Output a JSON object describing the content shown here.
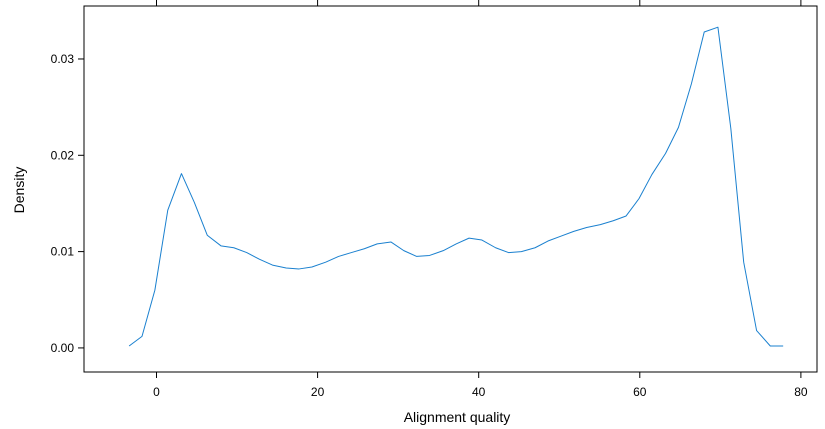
{
  "chart_data": {
    "type": "line",
    "title": "",
    "xlabel": "Alignment quality",
    "ylabel": "Density",
    "xlim": [
      -9,
      82
    ],
    "ylim": [
      -0.0025,
      0.0355
    ],
    "xticks": [
      0,
      20,
      40,
      60,
      80
    ],
    "yticks": [
      0.0,
      0.01,
      0.02,
      0.03
    ],
    "xtick_labels": [
      "0",
      "20",
      "40",
      "60",
      "80"
    ],
    "ytick_labels": [
      "0.00",
      "0.01",
      "0.02",
      "0.03"
    ],
    "grid": false,
    "colors": {
      "line": "#1a80cf",
      "axis": "#000000"
    },
    "series": [
      {
        "x": [
          -3.4,
          -1.8,
          -0.2,
          1.4,
          3.1,
          4.7,
          6.3,
          8.0,
          9.6,
          11.2,
          12.8,
          14.4,
          16.1,
          17.7,
          19.3,
          21.0,
          22.6,
          24.2,
          25.8,
          27.4,
          29.1,
          30.7,
          32.3,
          33.9,
          35.6,
          37.2,
          38.8,
          40.4,
          42.1,
          43.7,
          45.3,
          47.0,
          48.6,
          50.2,
          51.8,
          53.4,
          55.1,
          56.7,
          58.3,
          59.9,
          61.5,
          63.2,
          64.8,
          66.4,
          68.0,
          69.7,
          71.3,
          72.9,
          74.5,
          76.2,
          77.8
        ],
        "y": [
          0.0002,
          0.0012,
          0.006,
          0.0143,
          0.0181,
          0.0151,
          0.0117,
          0.0106,
          0.0104,
          0.0099,
          0.0092,
          0.0086,
          0.0083,
          0.0082,
          0.0084,
          0.0089,
          0.0095,
          0.0099,
          0.0103,
          0.0108,
          0.011,
          0.0101,
          0.0095,
          0.0096,
          0.0101,
          0.0108,
          0.0114,
          0.0112,
          0.0104,
          0.0099,
          0.01,
          0.0104,
          0.0111,
          0.0116,
          0.0121,
          0.0125,
          0.0128,
          0.0132,
          0.0137,
          0.0155,
          0.018,
          0.0202,
          0.0229,
          0.0274,
          0.0328,
          0.0333,
          0.0228,
          0.0089,
          0.0018,
          0.0002,
          0.0002
        ]
      }
    ]
  }
}
